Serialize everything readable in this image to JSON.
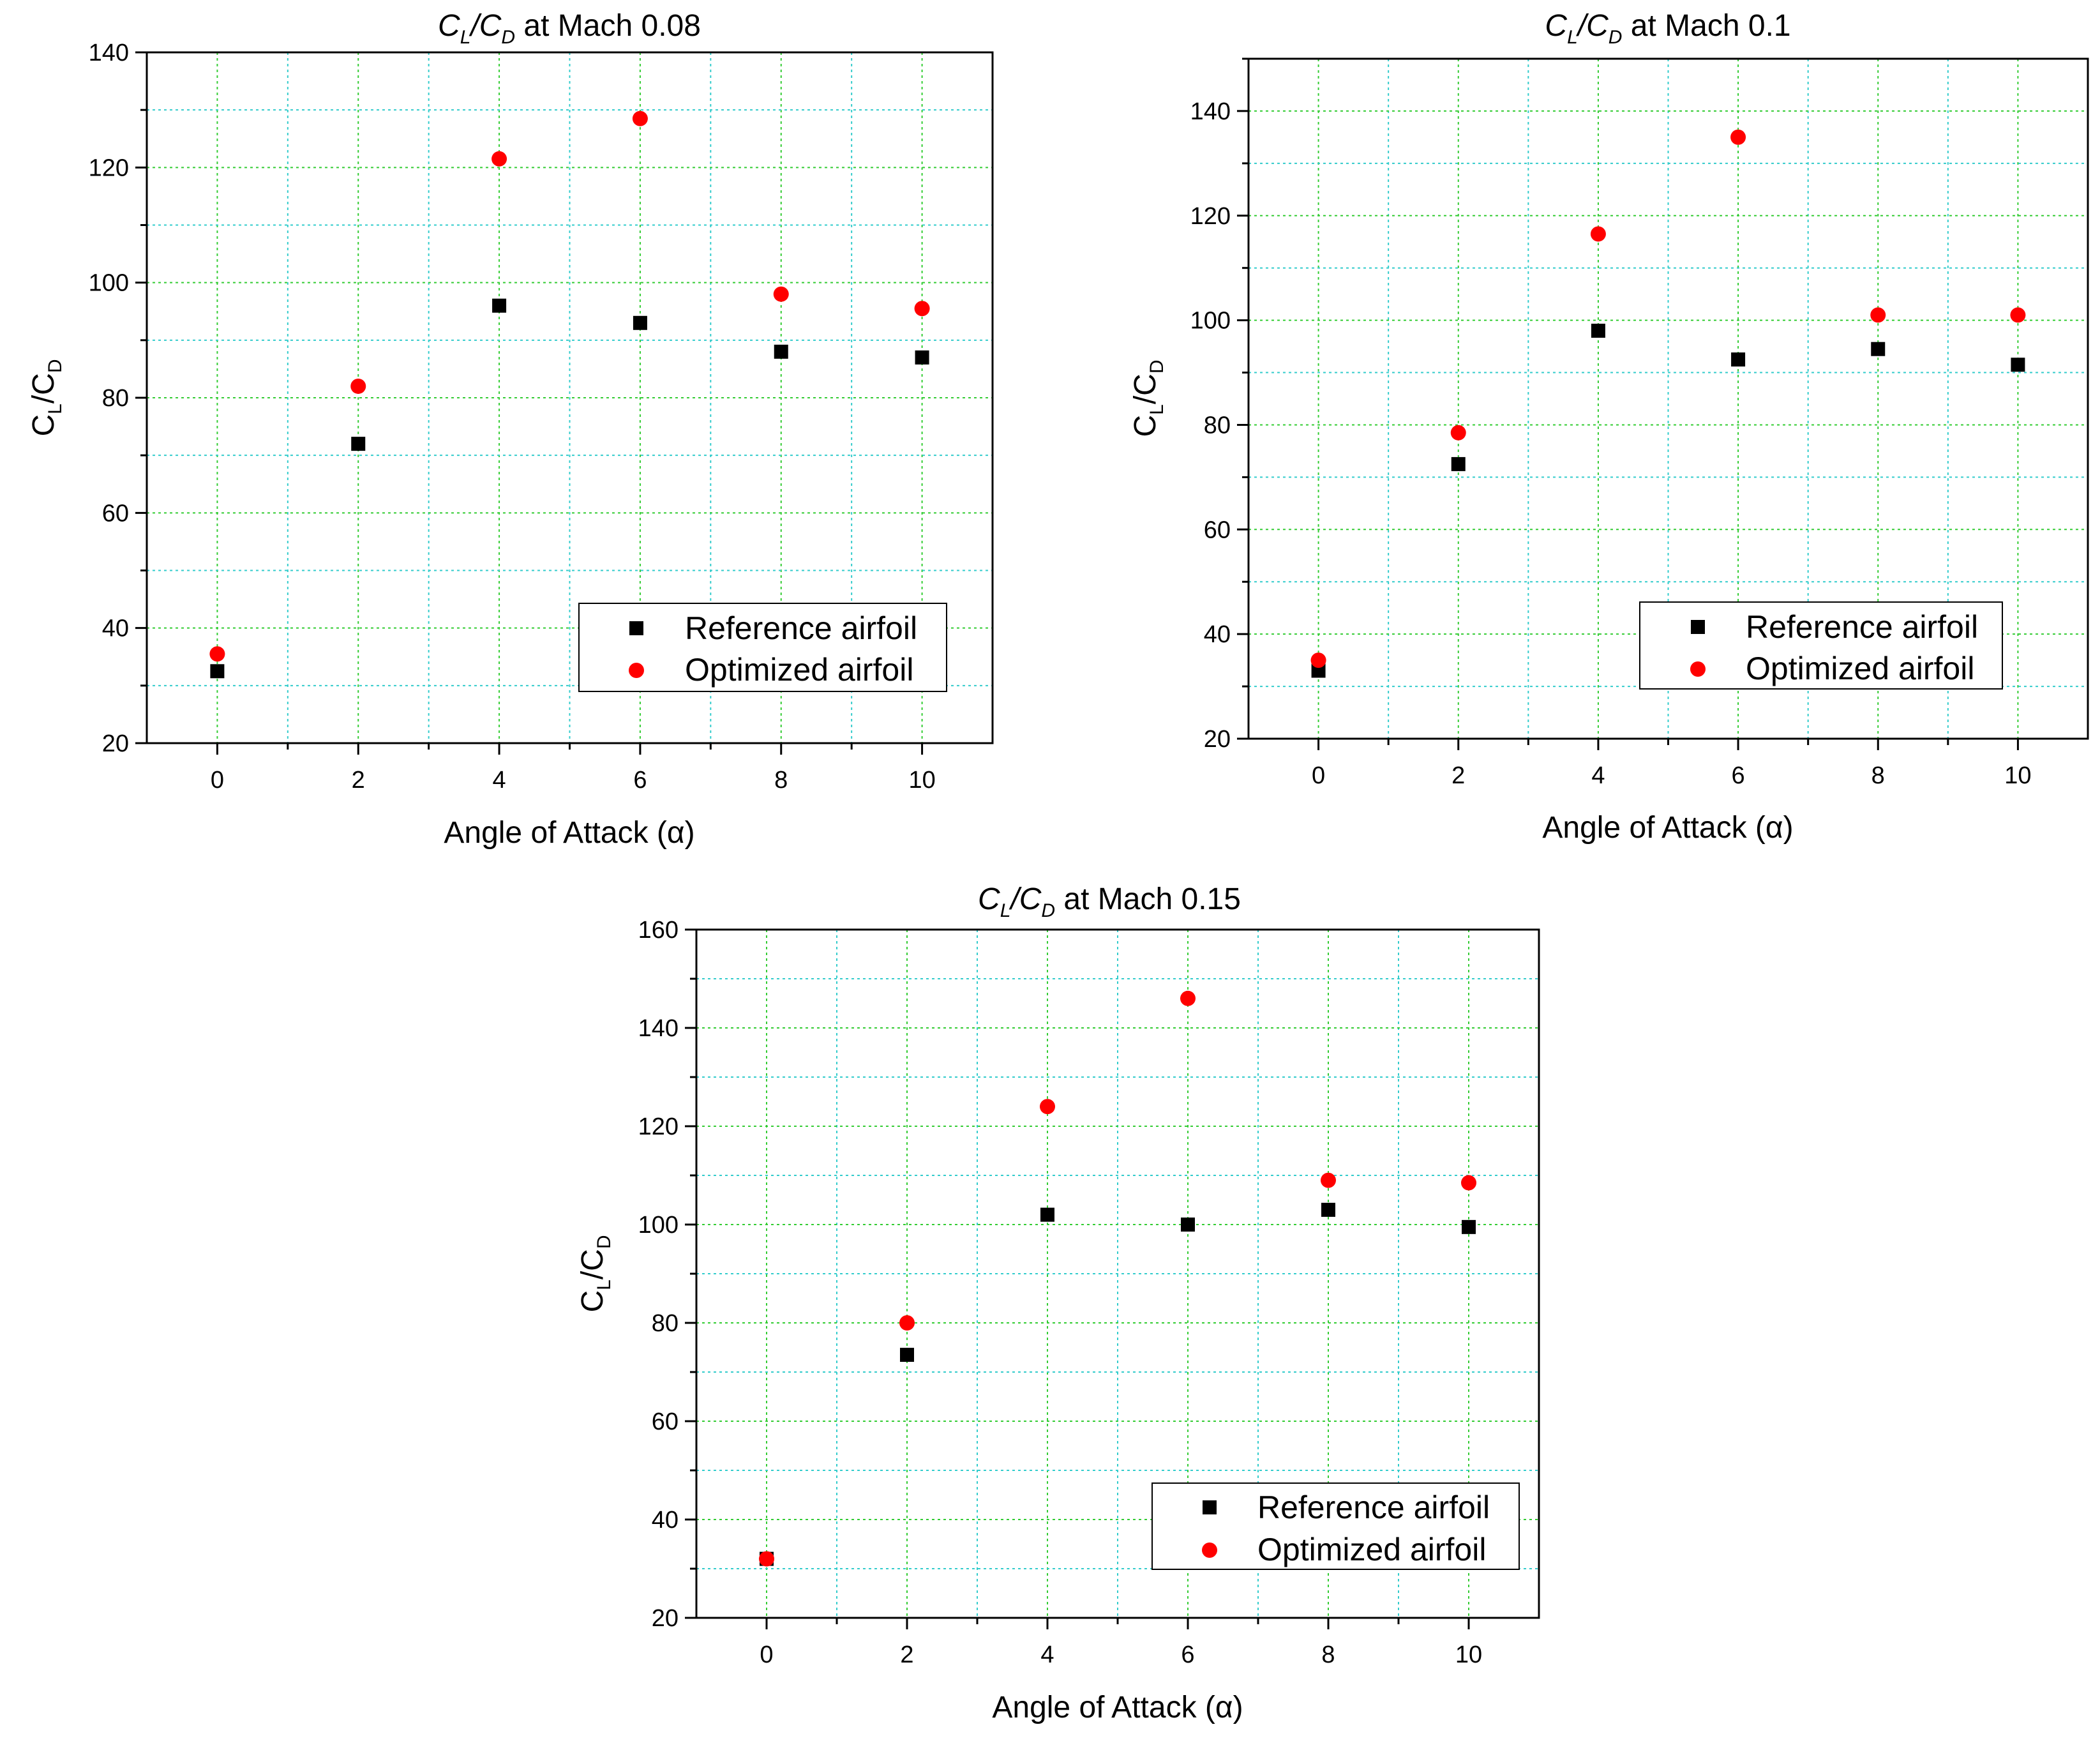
{
  "chart_data": [
    {
      "type": "scatter",
      "title": "CL/CD at Mach 0.08",
      "title_parts": {
        "c1": "C",
        "s1": "L",
        "slash": "/",
        "c2": "C",
        "s2": "D",
        "rest": " at Mach 0.08"
      },
      "xlabel": "Angle of Attack (α)",
      "ylabel": "CL/CD",
      "ylabel_parts": {
        "c1": "C",
        "s1": "L",
        "slash": "/",
        "c2": "C",
        "s2": "D"
      },
      "xlim": [
        -1,
        11
      ],
      "ylim": [
        20,
        140
      ],
      "x_ticks": [
        0,
        2,
        4,
        6,
        8,
        10
      ],
      "x_tick_labels": [
        "0",
        "2",
        "4",
        "6",
        "8",
        "10"
      ],
      "y_ticks": [
        20,
        40,
        60,
        80,
        100,
        120,
        140
      ],
      "y_tick_labels": [
        "20",
        "40",
        "60",
        "80",
        "100",
        "120",
        "140"
      ],
      "x": [
        0,
        2,
        4,
        6,
        8,
        10
      ],
      "series": [
        {
          "name": "Reference airfoil",
          "marker": "square",
          "color": "#000000",
          "values": [
            32.5,
            72,
            96,
            93,
            88,
            87
          ]
        },
        {
          "name": "Optimized airfoil",
          "marker": "circle",
          "color": "#ff0000",
          "values": [
            35.5,
            82,
            121.5,
            128.5,
            98,
            95.5
          ]
        }
      ],
      "grid": true,
      "legend_position": "bottom-right"
    },
    {
      "type": "scatter",
      "title": "CL/CD at Mach 0.1",
      "title_parts": {
        "c1": "C",
        "s1": "L",
        "slash": "/",
        "c2": "C",
        "s2": "D",
        "rest": " at Mach 0.1"
      },
      "xlabel": "Angle of Attack (α)",
      "ylabel": "CL/CD",
      "ylabel_parts": {
        "c1": "C",
        "s1": "L",
        "slash": "/",
        "c2": "C",
        "s2": "D"
      },
      "xlim": [
        -1,
        11
      ],
      "ylim": [
        20,
        150
      ],
      "x_ticks": [
        0,
        2,
        4,
        6,
        8,
        10
      ],
      "x_tick_labels": [
        "0",
        "2",
        "4",
        "6",
        "8",
        "10"
      ],
      "y_ticks": [
        20,
        40,
        60,
        80,
        100,
        120,
        140
      ],
      "y_tick_labels": [
        "20",
        "40",
        "60",
        "80",
        "100",
        "120",
        "140"
      ],
      "x": [
        0,
        2,
        4,
        6,
        8,
        10
      ],
      "series": [
        {
          "name": "Reference airfoil",
          "marker": "square",
          "color": "#000000",
          "values": [
            33,
            72.5,
            98,
            92.5,
            94.5,
            91.5
          ]
        },
        {
          "name": "Optimized airfoil",
          "marker": "circle",
          "color": "#ff0000",
          "values": [
            35,
            78.5,
            116.5,
            135,
            101,
            101
          ]
        }
      ],
      "grid": true,
      "legend_position": "bottom-right"
    },
    {
      "type": "scatter",
      "title": "CL/CD at Mach 0.15",
      "title_parts": {
        "c1": "C",
        "s1": "L",
        "slash": "/",
        "c2": "C",
        "s2": "D",
        "rest": " at Mach 0.15"
      },
      "xlabel": "Angle of Attack (α)",
      "ylabel": "CL/CD",
      "ylabel_parts": {
        "c1": "C",
        "s1": "L",
        "slash": "/",
        "c2": "C",
        "s2": "D"
      },
      "xlim": [
        -1,
        11
      ],
      "ylim": [
        20,
        160
      ],
      "x_ticks": [
        0,
        2,
        4,
        6,
        8,
        10
      ],
      "x_tick_labels": [
        "0",
        "2",
        "4",
        "6",
        "8",
        "10"
      ],
      "y_ticks": [
        20,
        40,
        60,
        80,
        100,
        120,
        140,
        160
      ],
      "y_tick_labels": [
        "20",
        "40",
        "60",
        "80",
        "100",
        "120",
        "140",
        "160"
      ],
      "x": [
        0,
        2,
        4,
        6,
        8,
        10
      ],
      "series": [
        {
          "name": "Reference airfoil",
          "marker": "square",
          "color": "#000000",
          "values": [
            32,
            73.5,
            102,
            100,
            103,
            99.5
          ]
        },
        {
          "name": "Optimized airfoil",
          "marker": "circle",
          "color": "#ff0000",
          "values": [
            32,
            80,
            124,
            146,
            109,
            108.5
          ]
        }
      ],
      "grid": true,
      "legend_position": "bottom-right"
    }
  ],
  "colors": {
    "grid_major": "#33cc33",
    "grid_minor": "#33cccc",
    "axis": "#000000"
  }
}
